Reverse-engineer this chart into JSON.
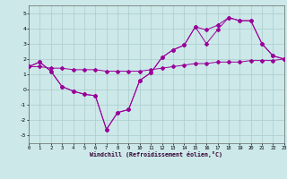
{
  "xlabel": "Windchill (Refroidissement éolien,°C)",
  "bg_color": "#cce8e8",
  "grid_color": "#aacccc",
  "line_color": "#990099",
  "xlim": [
    0,
    23
  ],
  "ylim": [
    -3.5,
    5.5
  ],
  "yticks": [
    -3,
    -2,
    -1,
    0,
    1,
    2,
    3,
    4,
    5
  ],
  "xticks": [
    0,
    1,
    2,
    3,
    4,
    5,
    6,
    7,
    8,
    9,
    10,
    11,
    12,
    13,
    14,
    15,
    16,
    17,
    18,
    19,
    20,
    21,
    22,
    23
  ],
  "series1": [
    1.5,
    1.8,
    1.2,
    0.2,
    -0.1,
    -0.3,
    -0.4,
    -2.6,
    -1.5,
    -1.3,
    0.6,
    1.1,
    2.1,
    2.6,
    2.9,
    4.1,
    3.0,
    3.9,
    4.7,
    4.5,
    4.5,
    3.0,
    2.2,
    2.0
  ],
  "series2": [
    1.5,
    1.8,
    1.2,
    0.2,
    -0.1,
    -0.3,
    -0.4,
    -2.6,
    -1.5,
    -1.3,
    0.6,
    1.1,
    2.1,
    2.6,
    2.9,
    4.1,
    3.9,
    4.2,
    4.7,
    4.5,
    4.5,
    3.0,
    2.2,
    2.0
  ],
  "series3": [
    1.5,
    1.5,
    1.4,
    1.4,
    1.3,
    1.3,
    1.3,
    1.2,
    1.2,
    1.2,
    1.2,
    1.3,
    1.4,
    1.5,
    1.6,
    1.7,
    1.7,
    1.8,
    1.8,
    1.8,
    1.9,
    1.9,
    1.9,
    2.0
  ]
}
